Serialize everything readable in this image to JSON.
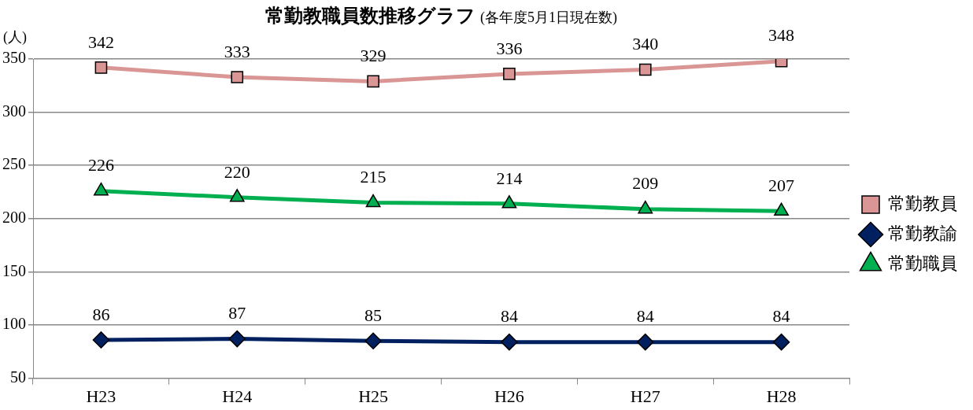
{
  "chart_data": {
    "type": "line",
    "title": "常勤教職員数推移グラフ",
    "subtitle": "(各年度5月1日現在数)",
    "ylabel": "(人)",
    "categories": [
      "H23",
      "H24",
      "H25",
      "H26",
      "H27",
      "H28"
    ],
    "series": [
      {
        "name": "常勤教員",
        "color": "#d99694",
        "marker": "square",
        "values": [
          342,
          333,
          329,
          336,
          340,
          348
        ]
      },
      {
        "name": "常勤教諭",
        "color": "#002060",
        "marker": "diamond",
        "values": [
          86,
          87,
          85,
          84,
          84,
          84
        ]
      },
      {
        "name": "常勤職員",
        "color": "#00b050",
        "marker": "triangle",
        "values": [
          226,
          220,
          215,
          214,
          209,
          207
        ]
      }
    ],
    "ylim": [
      50,
      350
    ],
    "yticks": [
      50,
      100,
      150,
      200,
      250,
      300,
      350
    ],
    "grid": "y",
    "legend": "right",
    "data_labels": true,
    "line_style": "solid"
  }
}
